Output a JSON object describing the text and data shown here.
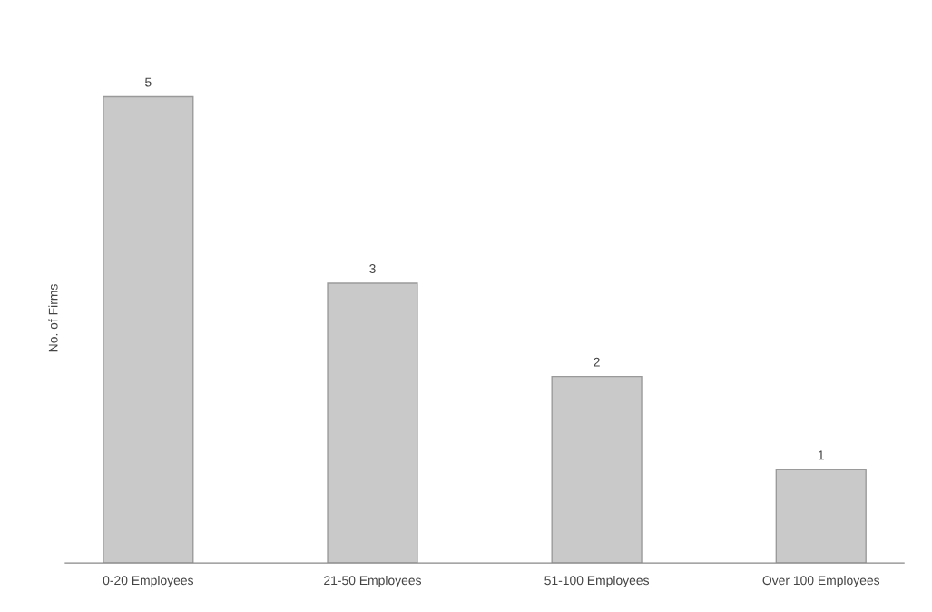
{
  "chart_data": {
    "type": "bar",
    "ylabel": "No. of Firms",
    "categories": [
      "0-20 Employees",
      "21-50 Employees",
      "51-100 Employees",
      "Over 100 Employees"
    ],
    "values": [
      5,
      3,
      2,
      1
    ],
    "color": "#c9c9c9",
    "data_labels": true,
    "tick_labels": "x",
    "grid": false,
    "legend": false
  }
}
